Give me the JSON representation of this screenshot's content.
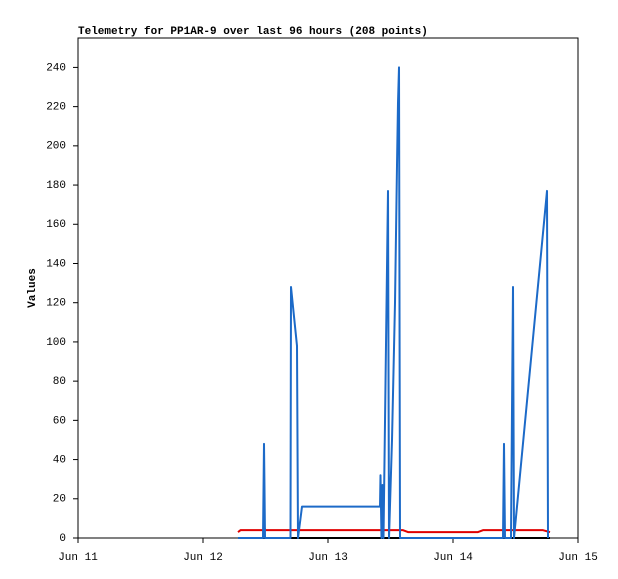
{
  "chart_data": {
    "type": "line",
    "title": "Telemetry for PP1AR-9 over last 96 hours (208 points)",
    "ylabel": "Values",
    "xlim": [
      0,
      4
    ],
    "xticks": [
      {
        "value": 0,
        "label": "Jun 11"
      },
      {
        "value": 1,
        "label": "Jun 12"
      },
      {
        "value": 2,
        "label": "Jun 13"
      },
      {
        "value": 3,
        "label": "Jun 14"
      },
      {
        "value": 4,
        "label": "Jun 15"
      }
    ],
    "ylim": [
      0,
      255
    ],
    "yticks": [
      0,
      20,
      40,
      60,
      80,
      100,
      120,
      140,
      160,
      180,
      200,
      220,
      240
    ],
    "grid": false,
    "series": [
      {
        "color": "#000000",
        "x": [
          1.28,
          3.776
        ],
        "values": [
          0,
          0
        ]
      },
      {
        "color": "#e00000",
        "x": [
          1.28,
          1.3,
          1.488,
          1.492,
          1.5,
          2.52,
          2.6,
          2.64,
          2.88,
          3.2,
          3.24,
          3.72,
          3.776
        ],
        "values": [
          3,
          4,
          4,
          5,
          4,
          4,
          4,
          3,
          3,
          3,
          4,
          4,
          3
        ]
      },
      {
        "color": "#1c6ac8",
        "x": [
          1.28,
          1.48,
          1.488,
          1.492,
          1.496,
          1.7,
          1.704,
          1.752,
          1.76,
          1.792,
          2.416,
          2.42,
          2.428,
          2.436,
          2.444,
          2.48,
          2.488,
          2.512,
          2.536,
          2.544,
          2.552,
          2.56,
          2.568,
          2.576,
          3.4,
          3.408,
          3.416,
          3.464,
          3.472,
          3.48,
          3.488,
          3.752,
          3.76
        ],
        "values": [
          0,
          0,
          48,
          25,
          0,
          0,
          128,
          98,
          0,
          16,
          16,
          32,
          0,
          27,
          0,
          177,
          0,
          50,
          120,
          155,
          190,
          222,
          240,
          0,
          0,
          48,
          0,
          0,
          65,
          128,
          0,
          177,
          0
        ]
      }
    ]
  }
}
